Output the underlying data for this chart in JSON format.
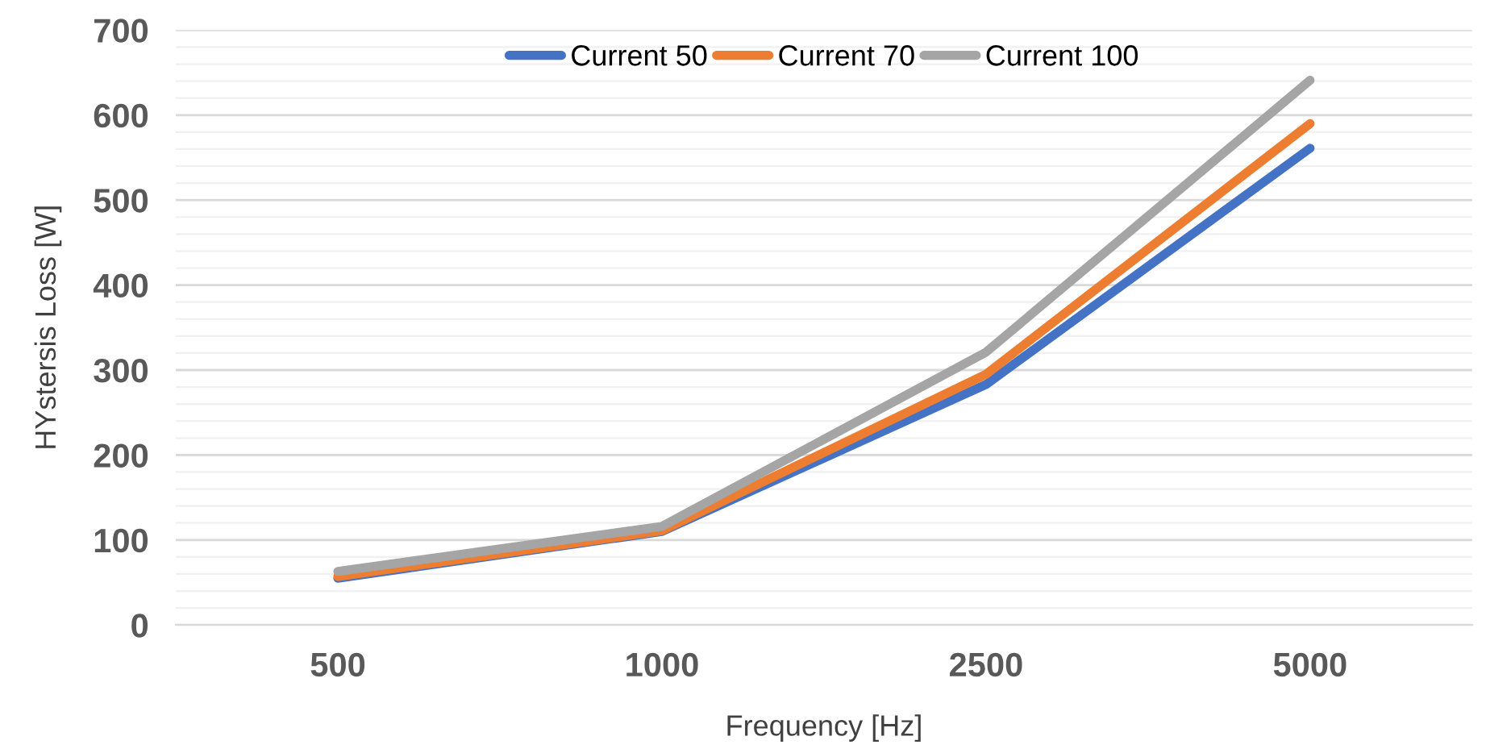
{
  "chart_data": {
    "type": "line",
    "xlabel": "Frequency [Hz]",
    "ylabel": "HYstersis Loss [W]",
    "categories": [
      "500",
      "1000",
      "2500",
      "5000"
    ],
    "series": [
      {
        "name": "Current 50",
        "color": "#4472c4",
        "values": [
          55,
          110,
          283,
          561
        ]
      },
      {
        "name": "Current 70",
        "color": "#ed7d31",
        "values": [
          57,
          111,
          295,
          590
        ]
      },
      {
        "name": "Current 100",
        "color": "#a5a5a5",
        "values": [
          63,
          116,
          321,
          641
        ]
      }
    ],
    "ylim": [
      0,
      700
    ],
    "yticks": [
      0,
      100,
      200,
      300,
      400,
      500,
      600,
      700
    ],
    "grid": "y",
    "legend": "top",
    "marker": "none",
    "line_style": "solid"
  }
}
